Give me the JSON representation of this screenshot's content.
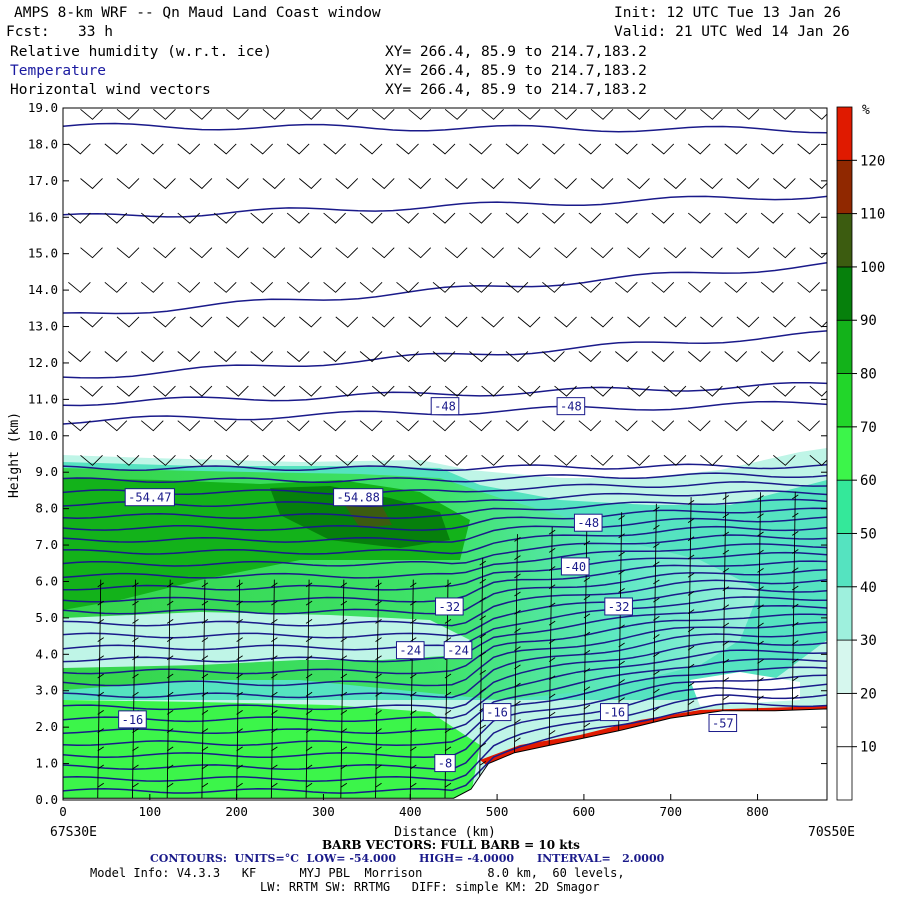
{
  "header": {
    "title": "AMPS 8-km WRF -- Qn Maud Land Coast window",
    "init": "Init: 12 UTC Tue 13 Jan 26",
    "fcst_label": "Fcst:",
    "fcst_value": "33 h",
    "valid": "Valid: 21 UTC Wed 14 Jan 26",
    "fields": [
      {
        "name": "Relative humidity (w.r.t. ice)",
        "xy": "XY= 266.4, 85.9 to 214.7,183.2"
      },
      {
        "name": "Temperature",
        "xy": "XY= 266.4, 85.9 to 214.7,183.2"
      },
      {
        "name": "Horizontal wind vectors",
        "xy": "XY= 266.4, 85.9 to 214.7,183.2"
      }
    ]
  },
  "chart_data": {
    "type": "heatmap",
    "xlabel": "Distance (km)",
    "ylabel": "Height (km)",
    "xlim": [
      0,
      880
    ],
    "ylim": [
      0,
      19
    ],
    "x_ticks": [
      0,
      100,
      200,
      300,
      400,
      500,
      600,
      700,
      800
    ],
    "y_ticks": [
      "0.0",
      "1.0",
      "2.0",
      "3.0",
      "4.0",
      "5.0",
      "6.0",
      "7.0",
      "8.0",
      "9.0",
      "10.0",
      "11.0",
      "12.0",
      "13.0",
      "14.0",
      "15.0",
      "16.0",
      "17.0",
      "18.0",
      "19.0"
    ],
    "left_endpoint": "67S30E",
    "right_endpoint": "70S50E",
    "colorbar": {
      "unit": "%",
      "ticks": [
        10,
        20,
        30,
        40,
        50,
        60,
        70,
        80,
        90,
        100,
        110,
        120
      ],
      "colors": [
        "#ffffff",
        "#ffffff",
        "#d6f7ee",
        "#9ef0dd",
        "#55e3c0",
        "#34e89a",
        "#3cf54a",
        "#22d62a",
        "#13b21a",
        "#06800c",
        "#3c5c10",
        "#902800",
        "#e01a00"
      ]
    },
    "terrain_km": [
      [
        0,
        0.05
      ],
      [
        100,
        0.05
      ],
      [
        200,
        0.05
      ],
      [
        300,
        0.05
      ],
      [
        400,
        0.05
      ],
      [
        450,
        0.05
      ],
      [
        470,
        0.3
      ],
      [
        490,
        1.0
      ],
      [
        520,
        1.3
      ],
      [
        580,
        1.6
      ],
      [
        640,
        1.9
      ],
      [
        700,
        2.25
      ],
      [
        760,
        2.45
      ],
      [
        820,
        2.45
      ],
      [
        880,
        2.5
      ]
    ],
    "temperature_contours_C": {
      "low": -54.0,
      "high": -4.0,
      "interval": 2.0,
      "labels": [
        {
          "x": 100,
          "y": 8.3,
          "text": "-54.47"
        },
        {
          "x": 340,
          "y": 8.3,
          "text": "-54.88"
        },
        {
          "x": 440,
          "y": 10.8,
          "text": "-48"
        },
        {
          "x": 585,
          "y": 10.8,
          "text": "-48"
        },
        {
          "x": 605,
          "y": 7.6,
          "text": "-48"
        },
        {
          "x": 590,
          "y": 6.4,
          "text": "-40"
        },
        {
          "x": 445,
          "y": 5.3,
          "text": "-32"
        },
        {
          "x": 640,
          "y": 5.3,
          "text": "-32"
        },
        {
          "x": 400,
          "y": 4.1,
          "text": "-24"
        },
        {
          "x": 455,
          "y": 4.1,
          "text": "-24"
        },
        {
          "x": 80,
          "y": 2.2,
          "text": "-16"
        },
        {
          "x": 500,
          "y": 2.4,
          "text": "-16"
        },
        {
          "x": 635,
          "y": 2.4,
          "text": "-16"
        },
        {
          "x": 440,
          "y": 1.0,
          "text": "-8"
        },
        {
          "x": 760,
          "y": 2.1,
          "text": "-57"
        }
      ]
    }
  },
  "footer": {
    "barb_note": "BARB VECTORS: FULL BARB = 10 kts",
    "contours": "CONTOURS:  UNITS=°C  LOW= -54.000      HIGH= -4.0000      INTERVAL=   2.0000",
    "model_line1": "Model Info: V4.3.3   KF      MYJ PBL  Morrison         8.0 km,  60 levels,",
    "model_line2": "LW: RRTM SW: RRTMG   DIFF: simple KM: 2D Smagor"
  }
}
